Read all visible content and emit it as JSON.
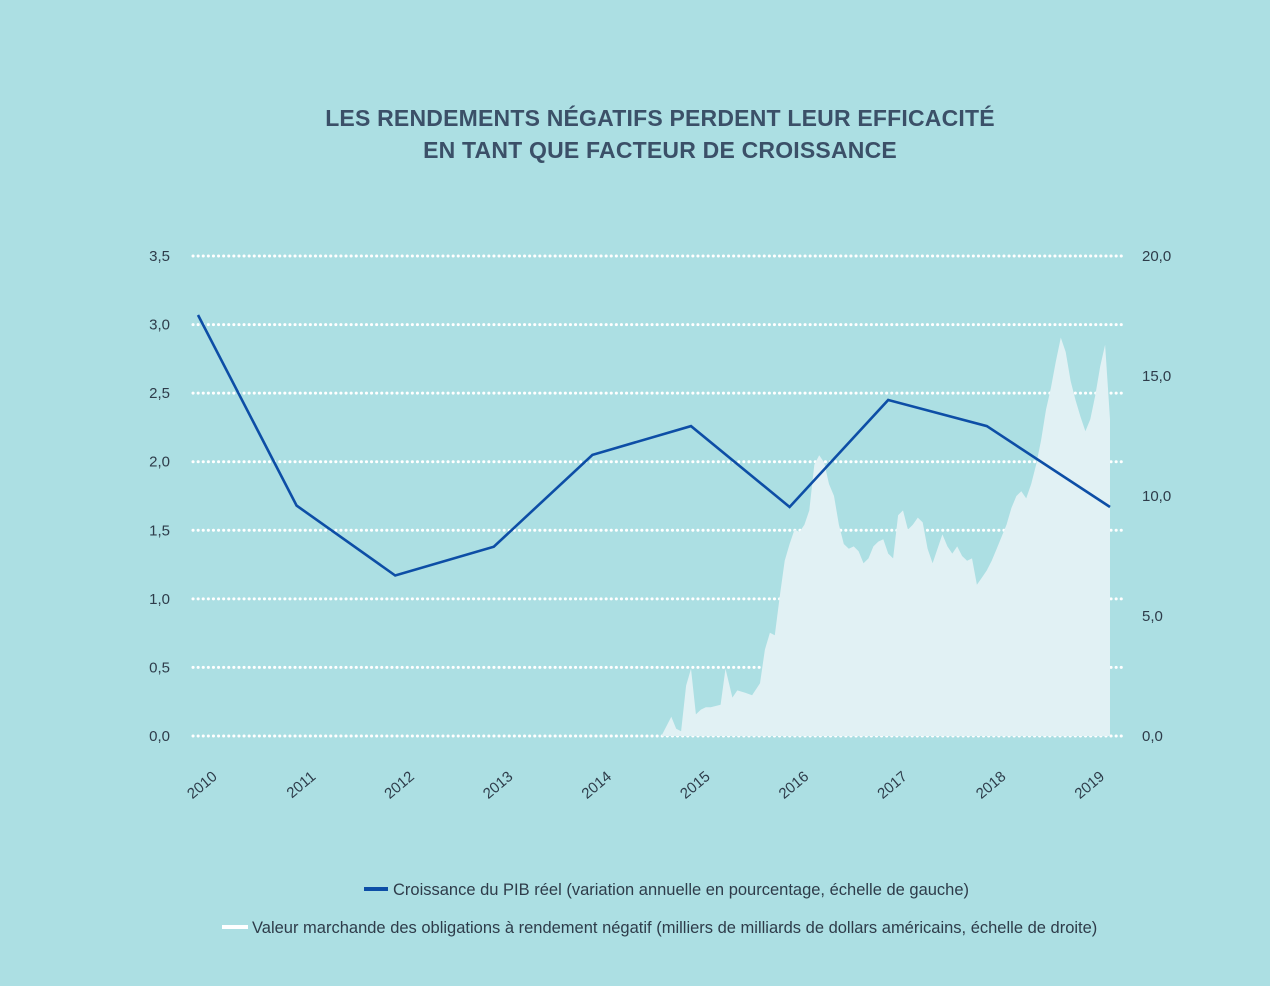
{
  "colors": {
    "background": "#acdfe3",
    "gdp_line": "#0d4ea6",
    "bonds_area": "#e1f1f4",
    "gridline": "#ffffff",
    "title": "#3b5068",
    "text": "#2e3c4a"
  },
  "chart_data": {
    "type": "line",
    "title_lines": [
      "LES RENDEMENTS NÉGATIFS PERDENT LEUR EFFICACITÉ",
      "EN TANT QUE FACTEUR DE CROISSANCE"
    ],
    "x_tick_labels": [
      "2010",
      "2011",
      "2012",
      "2013",
      "2014",
      "2015",
      "2016",
      "2017",
      "2018",
      "2019"
    ],
    "x_range": [
      2010,
      2019.25
    ],
    "y_left": {
      "range": [
        0,
        3.5
      ],
      "ticks": [
        0,
        0.5,
        1,
        1.5,
        2,
        2.5,
        3,
        3.5
      ],
      "tick_labels": [
        "0,0",
        "0,5",
        "1,0",
        "1,5",
        "2,0",
        "2,5",
        "3,0",
        "3,5"
      ]
    },
    "y_right": {
      "range": [
        0,
        20
      ],
      "ticks": [
        0,
        5,
        10,
        15,
        20
      ],
      "tick_labels": [
        "0,0",
        "5,0",
        "10,0",
        "15,0",
        "20,0"
      ]
    },
    "grid": "horizontal-dotted",
    "legend_position": "bottom-center",
    "series": [
      {
        "name": "Croissance du PIB réel (variation annuelle en pourcentage, échelle de gauche)",
        "axis": "left",
        "kind": "line",
        "x": [
          2010,
          2011,
          2012,
          2013,
          2014,
          2015,
          2016,
          2017,
          2018,
          2019.25
        ],
        "values": [
          3.07,
          1.68,
          1.17,
          1.38,
          2.05,
          2.26,
          1.67,
          2.45,
          2.26,
          1.67
        ]
      },
      {
        "name": "Valeur marchande des obligations à rendement négatif (milliers de milliards de dollars américains, échelle de droite)",
        "axis": "right",
        "kind": "area",
        "x": [
          2014.7,
          2014.8,
          2014.85,
          2014.9,
          2014.95,
          2015.0,
          2015.05,
          2015.1,
          2015.15,
          2015.2,
          2015.3,
          2015.35,
          2015.42,
          2015.47,
          2015.55,
          2015.62,
          2015.7,
          2015.75,
          2015.8,
          2015.85,
          2015.9,
          2015.95,
          2016.0,
          2016.05,
          2016.1,
          2016.15,
          2016.2,
          2016.25,
          2016.3,
          2016.35,
          2016.4,
          2016.45,
          2016.5,
          2016.55,
          2016.6,
          2016.65,
          2016.7,
          2016.75,
          2016.8,
          2016.85,
          2016.9,
          2016.95,
          2017.0,
          2017.05,
          2017.1,
          2017.15,
          2017.2,
          2017.25,
          2017.3,
          2017.35,
          2017.4,
          2017.45,
          2017.5,
          2017.55,
          2017.6,
          2017.65,
          2017.7,
          2017.75,
          2017.8,
          2017.85,
          2017.9,
          2017.95,
          2018.0,
          2018.05,
          2018.1,
          2018.15,
          2018.2,
          2018.25,
          2018.3,
          2018.35,
          2018.4,
          2018.45,
          2018.5,
          2018.55,
          2018.6,
          2018.65,
          2018.7,
          2018.75,
          2018.8,
          2018.85,
          2018.9,
          2018.95,
          2019.0,
          2019.05,
          2019.1,
          2019.15,
          2019.2,
          2019.25
        ],
        "values": [
          0,
          0.8,
          0.3,
          0.2,
          2.1,
          2.8,
          0.9,
          1.1,
          1.2,
          1.2,
          1.3,
          2.8,
          1.6,
          1.9,
          1.8,
          1.7,
          2.2,
          3.6,
          4.3,
          4.2,
          5.8,
          7.3,
          8.0,
          8.6,
          8.5,
          8.8,
          9.4,
          11.3,
          11.7,
          11.4,
          10.5,
          10.0,
          8.8,
          8.0,
          7.8,
          7.9,
          7.7,
          7.2,
          7.4,
          7.9,
          8.1,
          8.2,
          7.6,
          7.4,
          9.2,
          9.4,
          8.6,
          8.8,
          9.1,
          8.9,
          7.8,
          7.2,
          7.8,
          8.4,
          7.9,
          7.6,
          7.9,
          7.5,
          7.3,
          7.4,
          6.3,
          6.6,
          6.9,
          7.3,
          7.8,
          8.3,
          8.8,
          9.5,
          10.0,
          10.2,
          9.9,
          10.5,
          11.3,
          12.3,
          13.6,
          14.5,
          15.6,
          16.6,
          16.0,
          14.8,
          14.0,
          13.3,
          12.7,
          13.2,
          14.2,
          15.4,
          16.3,
          13.2
        ]
      }
    ],
    "legend": [
      {
        "label": "Croissance du PIB réel (variation annuelle en pourcentage, échelle de gauche)",
        "swatch": "line-dark"
      },
      {
        "label": "Valeur marchande des obligations à rendement négatif (milliers de milliards de dollars américains, échelle de droite)",
        "swatch": "line-light"
      }
    ]
  }
}
